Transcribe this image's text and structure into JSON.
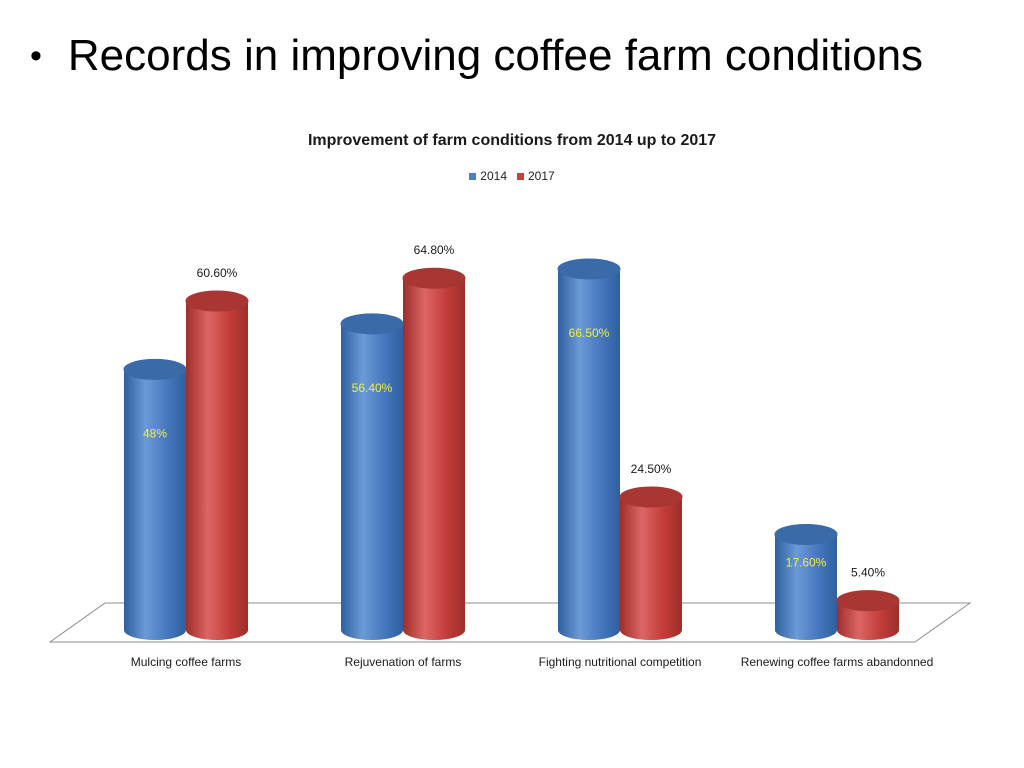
{
  "slide": {
    "bullet": "•",
    "title": "Records in improving coffee farm conditions"
  },
  "chart_data": {
    "type": "bar",
    "title": "Improvement of farm conditions from 2014 up to 2017",
    "categories": [
      "Mulcing  coffee farms",
      "Rejuvenation of farms",
      "Fighting nutritional competition",
      "Renewing coffee farms abandonned"
    ],
    "series": [
      {
        "name": "2014",
        "values": [
          48,
          56.4,
          66.5,
          17.6
        ],
        "labels": [
          "48%",
          "56.40%",
          "66.50%",
          "17.60%"
        ],
        "color": "#4a7fc5"
      },
      {
        "name": "2017",
        "values": [
          60.6,
          64.8,
          24.5,
          5.4
        ],
        "labels": [
          "60.60%",
          "64.80%",
          "24.50%",
          "5.40%"
        ],
        "color": "#c9403d"
      }
    ],
    "ylim": [
      0,
      70
    ],
    "legend": "top-center",
    "grid": false,
    "style": "3d-cylinder",
    "label_colors": {
      "inside": "#f2ef3a",
      "outside": "#1a1a1a"
    }
  }
}
